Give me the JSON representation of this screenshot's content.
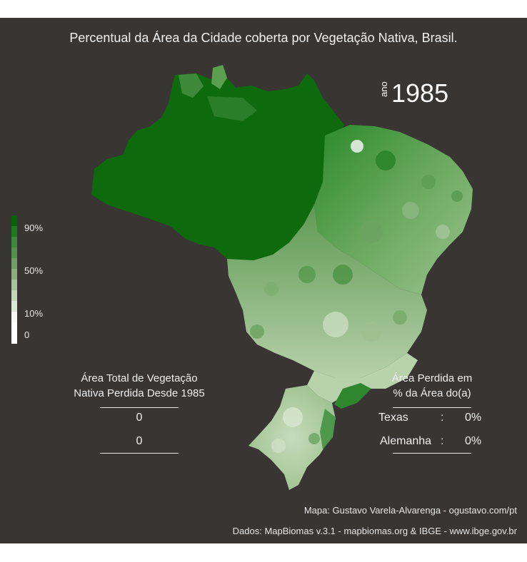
{
  "title": "Percentual da Área da Cidade coberta por Vegetação Nativa, Brasil.",
  "year": {
    "prefix": "ano",
    "value": "1985"
  },
  "legend": {
    "labels": [
      "90%",
      "50%",
      "10%",
      "0"
    ],
    "colors": [
      "#066406",
      "#1e7a1e",
      "#3a8a3a",
      "#548f4c",
      "#6e9e64",
      "#8aae7e",
      "#a6c49a",
      "#c2d8b8",
      "#dce8d6",
      "#f6f8f4"
    ]
  },
  "colors": {
    "background": "#383533",
    "text": "#f2f2f2",
    "forest": "#0d6a0d"
  },
  "left_stat": {
    "heading_line1": "Área Total de Vegetação",
    "heading_line2": "Nativa Perdida Desde 1985",
    "value1": "0",
    "value2": "0"
  },
  "right_stat": {
    "heading_line1": "Área Perdida em",
    "heading_line2": "% da Área do(a)",
    "rows": [
      {
        "name": "Texas",
        "sep": ":",
        "value": "0%"
      },
      {
        "name": "Alemanha",
        "sep": ":",
        "value": "0%"
      }
    ]
  },
  "credits": {
    "line1": "Mapa: Gustavo Varela-Alvarenga - ogustavo.com/pt",
    "line2": "Dados: MapBiomas v.3.1 - mapbiomas.org & IBGE - www.ibge.gov.br"
  }
}
